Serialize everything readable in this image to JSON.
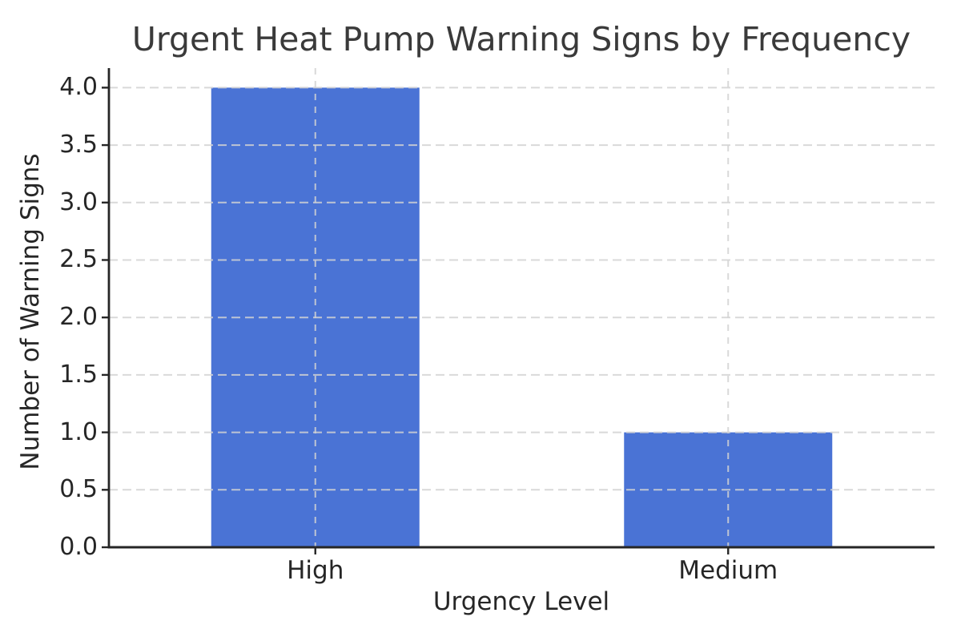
{
  "chart_data": {
    "type": "bar",
    "title": "Urgent Heat Pump Warning Signs by Frequency",
    "xlabel": "Urgency Level",
    "ylabel": "Number of Warning Signs",
    "categories": [
      "High",
      "Medium"
    ],
    "values": [
      4,
      1
    ],
    "yticks": [
      0.0,
      0.5,
      1.0,
      1.5,
      2.0,
      2.5,
      3.0,
      3.5,
      4.0
    ],
    "ytick_labels": [
      "0.0",
      "0.5",
      "1.0",
      "1.5",
      "2.0",
      "2.5",
      "3.0",
      "3.5",
      "4.0"
    ],
    "ylim": [
      0,
      4.17
    ],
    "grid": {
      "visible": true,
      "style": "dashed",
      "axes": "both",
      "above_bars": true
    },
    "legend": "none",
    "colors": {
      "bar": "#4a73d5",
      "grid": "#d2d2d2",
      "spine": "#262626",
      "tick_text": "#262626",
      "title_text": "#3a3a3a",
      "background": "#ffffff"
    }
  }
}
